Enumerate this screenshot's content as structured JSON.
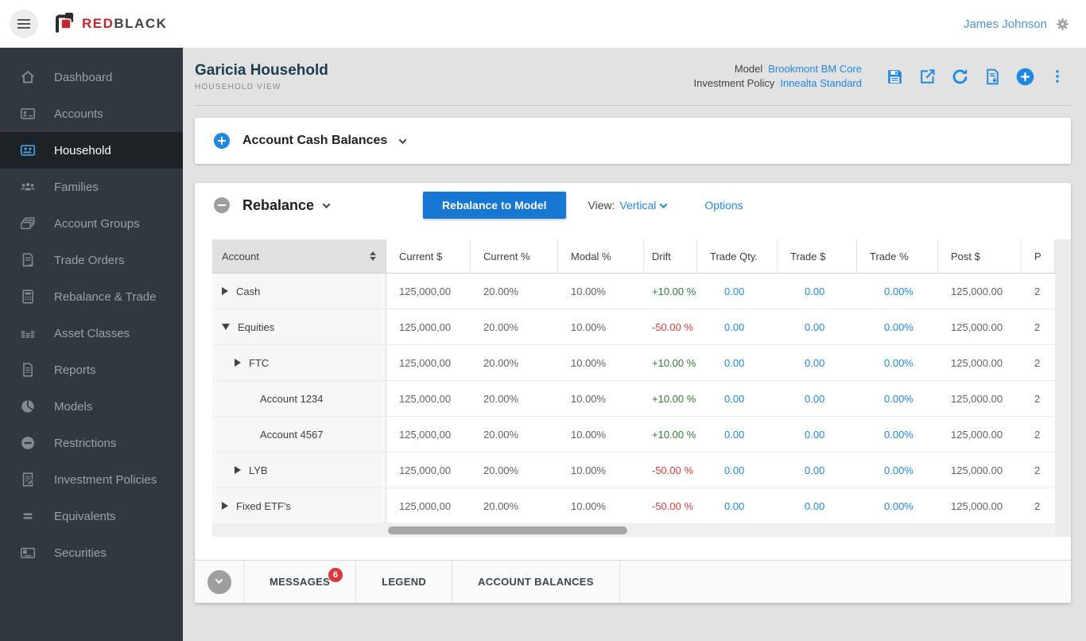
{
  "topbar": {
    "brand_red": "RED",
    "brand_black": "BLACK",
    "user_name": "James Johnson"
  },
  "sidebar": {
    "items": [
      {
        "label": "Dashboard",
        "icon": "home-icon",
        "active": false
      },
      {
        "label": "Accounts",
        "icon": "accounts-icon",
        "active": false
      },
      {
        "label": "Household",
        "icon": "household-icon",
        "active": true
      },
      {
        "label": "Families",
        "icon": "families-icon",
        "active": false
      },
      {
        "label": "Account Groups",
        "icon": "account-groups-icon",
        "active": false
      },
      {
        "label": "Trade Orders",
        "icon": "trade-orders-icon",
        "active": false
      },
      {
        "label": "Rebalance & Trade",
        "icon": "rebalance-trade-icon",
        "active": false
      },
      {
        "label": "Asset Classes",
        "icon": "asset-classes-icon",
        "active": false
      },
      {
        "label": "Reports",
        "icon": "reports-icon",
        "active": false
      },
      {
        "label": "Models",
        "icon": "models-icon",
        "active": false
      },
      {
        "label": "Restrictions",
        "icon": "restrictions-icon",
        "active": false
      },
      {
        "label": "Investment Policies",
        "icon": "investment-policies-icon",
        "active": false
      },
      {
        "label": "Equivalents",
        "icon": "equivalents-icon",
        "active": false
      },
      {
        "label": "Securities",
        "icon": "securities-icon",
        "active": false
      }
    ]
  },
  "page_header": {
    "title": "Garicia Household",
    "subtitle": "HOUSEHOLD VIEW",
    "model_label": "Model",
    "model_value": "Brookmont BM Core",
    "policy_label": "Investment Policy",
    "policy_value": "Innealta Standard",
    "action_icons": [
      "save-icon",
      "share-icon",
      "refresh-icon",
      "export-icon",
      "add-icon",
      "more-icon"
    ]
  },
  "cash_balances": {
    "title": "Account Cash Balances"
  },
  "rebalance": {
    "title": "Rebalance",
    "rebalance_button": "Rebalance to Model",
    "view_label": "View:",
    "view_value": "Vertical",
    "options_label": "Options"
  },
  "table": {
    "columns": [
      "Account",
      "Current $",
      "Current %",
      "Modal %",
      "Drift",
      "Trade Qty.",
      "Trade $",
      "Trade %",
      "Post $",
      "P"
    ],
    "last_column_clipped": true,
    "rows": [
      {
        "label": "Cash",
        "level": 0,
        "expander": "collapsed",
        "current_dollar": "125,000,00",
        "current_pct": "20.00%",
        "modal_pct": "10.00%",
        "drift": "+10.00 %",
        "drift_state": "positive",
        "trade_qty": "0.00",
        "trade_dollar": "0.00",
        "trade_pct": "0.00%",
        "post_dollar": "125,000.00",
        "post_pct_clipped": "2"
      },
      {
        "label": "Equities",
        "level": 0,
        "expander": "expanded",
        "current_dollar": "125,000,00",
        "current_pct": "20.00%",
        "modal_pct": "10.00%",
        "drift": "-50.00 %",
        "drift_state": "negative",
        "trade_qty": "0.00",
        "trade_dollar": "0.00",
        "trade_pct": "0.00%",
        "post_dollar": "125,000.00",
        "post_pct_clipped": "2"
      },
      {
        "label": "FTC",
        "level": 1,
        "expander": "collapsed",
        "current_dollar": "125,000,00",
        "current_pct": "20.00%",
        "modal_pct": "10.00%",
        "drift": "+10.00 %",
        "drift_state": "positive",
        "trade_qty": "0.00",
        "trade_dollar": "0.00",
        "trade_pct": "0.00%",
        "post_dollar": "125,000.00",
        "post_pct_clipped": "2"
      },
      {
        "label": "Account 1234",
        "level": 2,
        "expander": "none",
        "current_dollar": "125,000,00",
        "current_pct": "20.00%",
        "modal_pct": "10.00%",
        "drift": "+10.00 %",
        "drift_state": "positive",
        "trade_qty": "0.00",
        "trade_dollar": "0.00",
        "trade_pct": "0.00%",
        "post_dollar": "125,000.00",
        "post_pct_clipped": "2"
      },
      {
        "label": "Account 4567",
        "level": 2,
        "expander": "none",
        "current_dollar": "125,000,00",
        "current_pct": "20.00%",
        "modal_pct": "10.00%",
        "drift": "+10.00 %",
        "drift_state": "positive",
        "trade_qty": "0.00",
        "trade_dollar": "0.00",
        "trade_pct": "0.00%",
        "post_dollar": "125,000.00",
        "post_pct_clipped": "2"
      },
      {
        "label": "LYB",
        "level": 1,
        "expander": "collapsed",
        "current_dollar": "125,000,00",
        "current_pct": "20.00%",
        "modal_pct": "10.00%",
        "drift": "-50.00 %",
        "drift_state": "negative",
        "trade_qty": "0.00",
        "trade_dollar": "0.00",
        "trade_pct": "0.00%",
        "post_dollar": "125,000.00",
        "post_pct_clipped": "2"
      },
      {
        "label": "Fixed ETF's",
        "level": 0,
        "expander": "collapsed",
        "current_dollar": "125,000,00",
        "current_pct": "20.00%",
        "modal_pct": "10.00%",
        "drift": "-50.00 %",
        "drift_state": "negative",
        "trade_qty": "0.00",
        "trade_dollar": "0.00",
        "trade_pct": "0.00%",
        "post_dollar": "125,000.00",
        "post_pct_clipped": "2"
      }
    ]
  },
  "bottombar": {
    "tabs": [
      {
        "label": "MESSAGES",
        "badge": "6"
      },
      {
        "label": "LEGEND"
      },
      {
        "label": "ACCOUNT BALANCES"
      }
    ]
  },
  "colors": {
    "accent_blue": "#1e88e5",
    "button_blue": "#1677d2",
    "positive_green": "#2e7d32",
    "negative_red": "#e53935",
    "badge_red": "#d9363e",
    "title_dark": "#1e3c4f",
    "sidebar_bg": "#31383f",
    "sidebar_active_bg": "#1d2226"
  }
}
